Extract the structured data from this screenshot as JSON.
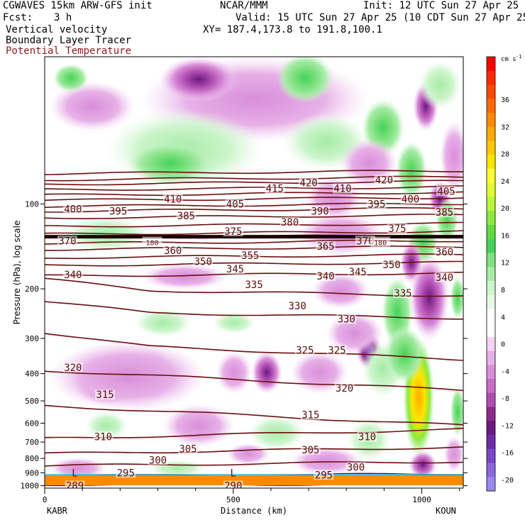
{
  "header": {
    "model": "CGWAVES 15km ARW-GFS init",
    "org": "NCAR/MMM",
    "init": "Init: 12 UTC Sun 27 Apr 25",
    "fcst_label": "Fcst:",
    "fcst_value": "3 h",
    "valid": "Valid: 15 UTC Sun 27 Apr 25 (10 CDT Sun 27 Apr 25)",
    "field1": "Vertical velocity",
    "xy": "XY= 187.4,173.8 to 191.8,100.1",
    "field2": "Boundary Layer Tracer",
    "field3": "Potential Temperature"
  },
  "chart_data": {
    "type": "heatmap",
    "ylabel": "Pressure (hPa), log scale",
    "xlabel": "Distance (km)",
    "x_range": [
      0,
      1110
    ],
    "y_scale": "log",
    "y_range_hpa": [
      1000,
      30
    ],
    "x_ticks": [
      {
        "value": 0,
        "label": "0"
      },
      {
        "value": 500,
        "label": "500"
      },
      {
        "value": 1000,
        "label": "1000"
      }
    ],
    "y_ticks": [
      {
        "value": 100,
        "label": "100"
      },
      {
        "value": 200,
        "label": "200"
      },
      {
        "value": 300,
        "label": "300"
      },
      {
        "value": 400,
        "label": "400"
      },
      {
        "value": 500,
        "label": "500"
      },
      {
        "value": 600,
        "label": "600"
      },
      {
        "value": 700,
        "label": "700"
      },
      {
        "value": 800,
        "label": "800"
      },
      {
        "value": 900,
        "label": "900"
      },
      {
        "value": 1000,
        "label": "1000"
      }
    ],
    "endpoints": {
      "left": "KABR",
      "right": "KOUN"
    },
    "colorbar": {
      "unit": "cm s",
      "unit_exp": "-1",
      "labels": [
        "36",
        "32",
        "28",
        "24",
        "20",
        "16",
        "12",
        "8",
        "4",
        "0",
        "-4",
        "-8",
        "-12",
        "-16",
        "-20"
      ],
      "colors": [
        "#ff0000",
        "#ff2a00",
        "#ff4a00",
        "#ff6a00",
        "#ff8a00",
        "#ffaa00",
        "#ffc800",
        "#ffe600",
        "#ffff33",
        "#e0ff33",
        "#b8f53a",
        "#8ee83d",
        "#5fdb40",
        "#44d35a",
        "#7ee07e",
        "#a6eba6",
        "#cdf5cd",
        "#e6fae6",
        "#ffffff",
        "#ffffff",
        "#f3d2f3",
        "#e7b0e7",
        "#d98ed9",
        "#c96dc9",
        "#b04db0",
        "#8c2a8c",
        "#6a1a80",
        "#6f2aa8",
        "#7a48c8",
        "#8a68dc",
        "#9a88ec"
      ]
    },
    "theta_contours": [
      {
        "label": "290",
        "pressure": 985
      },
      {
        "label": "289",
        "pressure": 990
      },
      {
        "label": "295",
        "pressure": 925
      },
      {
        "label": "300",
        "pressure": 850
      },
      {
        "label": "305",
        "pressure": 770
      },
      {
        "label": "310",
        "pressure": 680
      },
      {
        "label": "315",
        "pressure": 520
      },
      {
        "label": "320",
        "pressure": 390
      },
      {
        "label": "325",
        "pressure": 310
      },
      {
        "label": "330",
        "pressure": 240
      },
      {
        "label": "335",
        "pressure": 200
      },
      {
        "label": "340",
        "pressure": 180
      },
      {
        "label": "345",
        "pressure": 165
      },
      {
        "label": "350",
        "pressure": 155
      },
      {
        "label": "355",
        "pressure": 145
      },
      {
        "label": "360",
        "pressure": 138
      },
      {
        "label": "365",
        "pressure": 132
      },
      {
        "label": "370",
        "pressure": 128
      },
      {
        "label": "375",
        "pressure": 120
      },
      {
        "label": "380",
        "pressure": 112
      },
      {
        "label": "385",
        "pressure": 106
      },
      {
        "label": "390",
        "pressure": 102
      },
      {
        "label": "395",
        "pressure": 97
      },
      {
        "label": "400",
        "pressure": 93
      },
      {
        "label": "405",
        "pressure": 89
      },
      {
        "label": "410",
        "pressure": 85
      },
      {
        "label": "415",
        "pressure": 82
      },
      {
        "label": "420",
        "pressure": 78
      }
    ],
    "labels_on_plot": [
      {
        "text": "420",
        "x_km": 700,
        "p": 84
      },
      {
        "text": "415",
        "x_km": 610,
        "p": 88
      },
      {
        "text": "410",
        "x_km": 340,
        "p": 96
      },
      {
        "text": "410",
        "x_km": 790,
        "p": 88
      },
      {
        "text": "420",
        "x_km": 900,
        "p": 82
      },
      {
        "text": "405",
        "x_km": 505,
        "p": 100
      },
      {
        "text": "400",
        "x_km": 75,
        "p": 104
      },
      {
        "text": "395",
        "x_km": 195,
        "p": 106
      },
      {
        "text": "385",
        "x_km": 375,
        "p": 110
      },
      {
        "text": "390",
        "x_km": 730,
        "p": 106
      },
      {
        "text": "395",
        "x_km": 880,
        "p": 100
      },
      {
        "text": "400",
        "x_km": 970,
        "p": 96
      },
      {
        "text": "405",
        "x_km": 1065,
        "p": 90
      },
      {
        "text": "385",
        "x_km": 1060,
        "p": 107
      },
      {
        "text": "380",
        "x_km": 650,
        "p": 116
      },
      {
        "text": "375",
        "x_km": 500,
        "p": 125
      },
      {
        "text": "375",
        "x_km": 935,
        "p": 122
      },
      {
        "text": "370",
        "x_km": 60,
        "p": 135
      },
      {
        "text": "370",
        "x_km": 850,
        "p": 135
      },
      {
        "text": "365",
        "x_km": 745,
        "p": 141
      },
      {
        "text": "360",
        "x_km": 340,
        "p": 146
      },
      {
        "text": "360",
        "x_km": 1060,
        "p": 148
      },
      {
        "text": "355",
        "x_km": 545,
        "p": 152
      },
      {
        "text": "350",
        "x_km": 420,
        "p": 160
      },
      {
        "text": "350",
        "x_km": 920,
        "p": 164
      },
      {
        "text": "345",
        "x_km": 505,
        "p": 170
      },
      {
        "text": "345",
        "x_km": 830,
        "p": 174
      },
      {
        "text": "340",
        "x_km": 75,
        "p": 178
      },
      {
        "text": "340",
        "x_km": 745,
        "p": 180
      },
      {
        "text": "340",
        "x_km": 1060,
        "p": 182
      },
      {
        "text": "335",
        "x_km": 555,
        "p": 193
      },
      {
        "text": "335",
        "x_km": 950,
        "p": 207
      },
      {
        "text": "330",
        "x_km": 670,
        "p": 230
      },
      {
        "text": "330",
        "x_km": 800,
        "p": 256
      },
      {
        "text": "325",
        "x_km": 690,
        "p": 330
      },
      {
        "text": "325",
        "x_km": 775,
        "p": 330
      },
      {
        "text": "320",
        "x_km": 75,
        "p": 380
      },
      {
        "text": "320",
        "x_km": 795,
        "p": 450
      },
      {
        "text": "315",
        "x_km": 160,
        "p": 475
      },
      {
        "text": "315",
        "x_km": 705,
        "p": 560
      },
      {
        "text": "310",
        "x_km": 155,
        "p": 670
      },
      {
        "text": "310",
        "x_km": 855,
        "p": 670
      },
      {
        "text": "305",
        "x_km": 380,
        "p": 740
      },
      {
        "text": "305",
        "x_km": 705,
        "p": 745
      },
      {
        "text": "300",
        "x_km": 300,
        "p": 810
      },
      {
        "text": "300",
        "x_km": 825,
        "p": 860
      },
      {
        "text": "295",
        "x_km": 215,
        "p": 900
      },
      {
        "text": "295",
        "x_km": 740,
        "p": 915
      },
      {
        "text": "289",
        "x_km": 80,
        "p": 1000
      },
      {
        "text": "290",
        "x_km": 500,
        "p": 1000
      },
      {
        "text": "L",
        "x_km": 80,
        "p": 900
      },
      {
        "text": "L",
        "x_km": 500,
        "p": 900
      },
      {
        "text": "180",
        "x_km": 285,
        "p": 136
      },
      {
        "text": "180",
        "x_km": 890,
        "p": 136
      }
    ]
  }
}
